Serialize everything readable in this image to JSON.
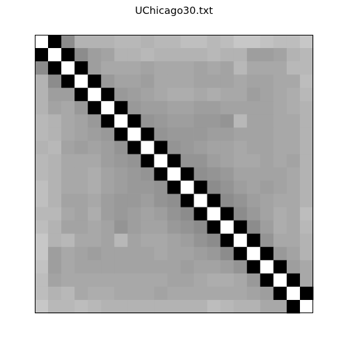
{
  "chart_data": {
    "type": "heatmap",
    "title": "UChicago30.txt",
    "rows": 21,
    "cols": 21,
    "colormap": "gray",
    "axes": {
      "ticks": false,
      "grid": false
    },
    "values": [
      [
        1.0,
        0.0,
        0.55,
        0.7,
        0.7,
        0.7,
        0.72,
        0.72,
        0.7,
        0.72,
        0.72,
        0.75,
        0.75,
        0.72,
        0.74,
        0.78,
        0.78,
        0.76,
        0.74,
        0.74,
        0.78
      ],
      [
        0.0,
        1.0,
        0.0,
        0.55,
        0.62,
        0.64,
        0.7,
        0.7,
        0.72,
        0.7,
        0.7,
        0.7,
        0.7,
        0.72,
        0.7,
        0.7,
        0.62,
        0.62,
        0.64,
        0.7,
        0.72
      ],
      [
        0.55,
        0.0,
        1.0,
        0.0,
        0.62,
        0.66,
        0.66,
        0.66,
        0.64,
        0.66,
        0.66,
        0.66,
        0.64,
        0.66,
        0.64,
        0.72,
        0.66,
        0.66,
        0.66,
        0.72,
        0.72
      ],
      [
        0.7,
        0.55,
        0.0,
        1.0,
        0.0,
        0.6,
        0.64,
        0.64,
        0.62,
        0.66,
        0.66,
        0.66,
        0.64,
        0.64,
        0.64,
        0.66,
        0.64,
        0.64,
        0.66,
        0.66,
        0.74
      ],
      [
        0.7,
        0.62,
        0.62,
        0.0,
        1.0,
        0.0,
        0.6,
        0.62,
        0.64,
        0.66,
        0.68,
        0.68,
        0.66,
        0.68,
        0.66,
        0.66,
        0.62,
        0.64,
        0.66,
        0.68,
        0.72
      ],
      [
        0.7,
        0.64,
        0.66,
        0.6,
        0.0,
        1.0,
        0.0,
        0.6,
        0.62,
        0.62,
        0.64,
        0.64,
        0.62,
        0.62,
        0.64,
        0.64,
        0.64,
        0.64,
        0.66,
        0.68,
        0.7
      ],
      [
        0.72,
        0.7,
        0.66,
        0.64,
        0.6,
        0.0,
        1.0,
        0.0,
        0.58,
        0.6,
        0.62,
        0.62,
        0.6,
        0.6,
        0.58,
        0.72,
        0.64,
        0.64,
        0.66,
        0.66,
        0.7
      ],
      [
        0.72,
        0.7,
        0.66,
        0.64,
        0.62,
        0.6,
        0.0,
        1.0,
        0.0,
        0.58,
        0.6,
        0.6,
        0.6,
        0.62,
        0.62,
        0.64,
        0.64,
        0.64,
        0.66,
        0.66,
        0.7
      ],
      [
        0.7,
        0.72,
        0.64,
        0.62,
        0.64,
        0.62,
        0.58,
        0.0,
        1.0,
        0.0,
        0.58,
        0.6,
        0.62,
        0.64,
        0.64,
        0.66,
        0.64,
        0.64,
        0.66,
        0.66,
        0.7
      ],
      [
        0.72,
        0.7,
        0.66,
        0.66,
        0.66,
        0.62,
        0.6,
        0.58,
        0.0,
        1.0,
        0.0,
        0.58,
        0.58,
        0.62,
        0.64,
        0.66,
        0.66,
        0.64,
        0.66,
        0.64,
        0.7
      ],
      [
        0.72,
        0.7,
        0.66,
        0.66,
        0.68,
        0.64,
        0.62,
        0.6,
        0.58,
        0.0,
        1.0,
        0.0,
        0.56,
        0.58,
        0.6,
        0.64,
        0.64,
        0.64,
        0.64,
        0.66,
        0.7
      ],
      [
        0.75,
        0.7,
        0.66,
        0.66,
        0.68,
        0.64,
        0.62,
        0.6,
        0.6,
        0.58,
        0.0,
        1.0,
        0.0,
        0.55,
        0.58,
        0.62,
        0.64,
        0.62,
        0.64,
        0.66,
        0.7
      ],
      [
        0.75,
        0.7,
        0.64,
        0.64,
        0.66,
        0.62,
        0.6,
        0.6,
        0.62,
        0.58,
        0.56,
        0.0,
        1.0,
        0.0,
        0.55,
        0.58,
        0.62,
        0.64,
        0.66,
        0.66,
        0.7
      ],
      [
        0.72,
        0.72,
        0.66,
        0.64,
        0.68,
        0.62,
        0.6,
        0.62,
        0.64,
        0.62,
        0.58,
        0.55,
        0.0,
        1.0,
        0.0,
        0.55,
        0.6,
        0.64,
        0.68,
        0.66,
        0.74
      ],
      [
        0.74,
        0.7,
        0.64,
        0.64,
        0.66,
        0.64,
        0.58,
        0.62,
        0.64,
        0.64,
        0.6,
        0.58,
        0.55,
        0.0,
        1.0,
        0.0,
        0.55,
        0.62,
        0.68,
        0.66,
        0.72
      ],
      [
        0.78,
        0.7,
        0.72,
        0.66,
        0.66,
        0.64,
        0.72,
        0.64,
        0.66,
        0.66,
        0.64,
        0.62,
        0.58,
        0.55,
        0.0,
        1.0,
        0.0,
        0.58,
        0.66,
        0.66,
        0.7
      ],
      [
        0.78,
        0.62,
        0.66,
        0.64,
        0.62,
        0.64,
        0.64,
        0.64,
        0.64,
        0.66,
        0.64,
        0.64,
        0.62,
        0.6,
        0.55,
        0.0,
        1.0,
        0.0,
        0.6,
        0.64,
        0.7
      ],
      [
        0.76,
        0.62,
        0.66,
        0.64,
        0.64,
        0.64,
        0.64,
        0.64,
        0.64,
        0.64,
        0.64,
        0.62,
        0.64,
        0.64,
        0.62,
        0.58,
        0.0,
        1.0,
        0.0,
        0.62,
        0.66
      ],
      [
        0.74,
        0.64,
        0.66,
        0.66,
        0.66,
        0.66,
        0.66,
        0.66,
        0.66,
        0.66,
        0.64,
        0.64,
        0.66,
        0.68,
        0.68,
        0.66,
        0.6,
        0.0,
        1.0,
        0.0,
        0.66
      ],
      [
        0.74,
        0.7,
        0.72,
        0.66,
        0.68,
        0.68,
        0.66,
        0.66,
        0.66,
        0.64,
        0.66,
        0.66,
        0.66,
        0.66,
        0.66,
        0.66,
        0.64,
        0.62,
        0.0,
        1.0,
        0.0
      ],
      [
        0.78,
        0.72,
        0.72,
        0.74,
        0.72,
        0.7,
        0.7,
        0.7,
        0.7,
        0.7,
        0.7,
        0.7,
        0.7,
        0.74,
        0.72,
        0.7,
        0.7,
        0.66,
        0.66,
        0.0,
        1.0
      ]
    ]
  }
}
